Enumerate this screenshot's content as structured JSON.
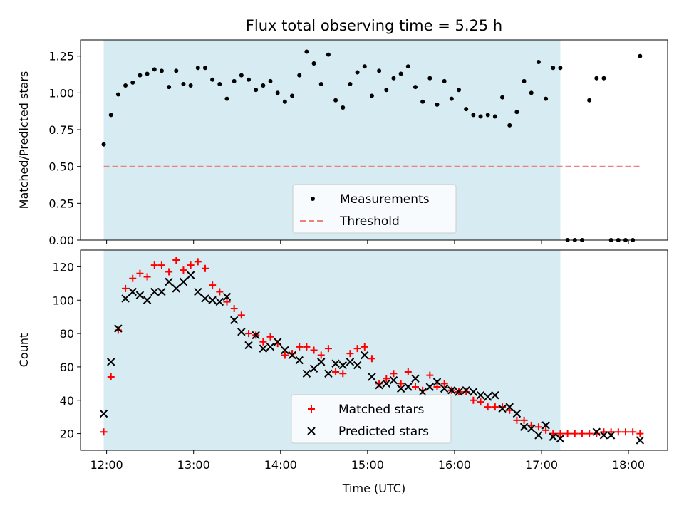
{
  "chart_data": [
    {
      "type": "scatter",
      "title": "Flux total observing time = 5.25 h",
      "xlabel": "",
      "ylabel": "Matched/Predicted stars",
      "xlim": [
        "11:42",
        "18:27"
      ],
      "ylim": [
        0,
        1.36
      ],
      "yticks": [
        "0.00",
        "0.25",
        "0.50",
        "0.75",
        "1.00",
        "1.25"
      ],
      "xticks": [
        "12:00",
        "13:00",
        "14:00",
        "15:00",
        "16:00",
        "17:00",
        "18:00"
      ],
      "observing_window": [
        "11:58",
        "17:13"
      ],
      "legend": {
        "placement": "lower-center",
        "entries": [
          "Measurements",
          "Threshold"
        ]
      },
      "series": [
        {
          "name": "Measurements",
          "color": "#000000",
          "marker": "dot",
          "x": [
            "11:58",
            "12:03",
            "12:08",
            "12:13",
            "12:18",
            "12:23",
            "12:28",
            "12:33",
            "12:38",
            "12:43",
            "12:48",
            "12:53",
            "12:58",
            "13:03",
            "13:08",
            "13:13",
            "13:18",
            "13:23",
            "13:28",
            "13:33",
            "13:38",
            "13:43",
            "13:48",
            "13:53",
            "13:58",
            "14:03",
            "14:08",
            "14:13",
            "14:18",
            "14:23",
            "14:28",
            "14:33",
            "14:38",
            "14:43",
            "14:48",
            "14:53",
            "14:58",
            "15:03",
            "15:08",
            "15:13",
            "15:18",
            "15:23",
            "15:28",
            "15:33",
            "15:38",
            "15:43",
            "15:48",
            "15:53",
            "15:58",
            "16:03",
            "16:08",
            "16:13",
            "16:18",
            "16:23",
            "16:28",
            "16:33",
            "16:38",
            "16:43",
            "16:48",
            "16:53",
            "16:58",
            "17:03",
            "17:08",
            "17:13",
            "17:18",
            "17:23",
            "17:28",
            "17:33",
            "17:38",
            "17:43",
            "17:48",
            "17:53",
            "17:58",
            "18:03",
            "18:08"
          ],
          "y": [
            0.65,
            0.85,
            0.99,
            1.05,
            1.07,
            1.12,
            1.13,
            1.16,
            1.15,
            1.04,
            1.15,
            1.06,
            1.05,
            1.17,
            1.17,
            1.09,
            1.06,
            0.96,
            1.08,
            1.12,
            1.09,
            1.02,
            1.05,
            1.08,
            1.0,
            0.94,
            0.98,
            1.12,
            1.28,
            1.2,
            1.06,
            1.26,
            0.95,
            0.9,
            1.06,
            1.14,
            1.18,
            0.98,
            1.15,
            1.02,
            1.1,
            1.13,
            1.18,
            1.04,
            0.94,
            1.1,
            0.92,
            1.08,
            0.96,
            1.02,
            0.89,
            0.85,
            0.84,
            0.85,
            0.84,
            0.97,
            0.78,
            0.87,
            1.08,
            1.0,
            1.21,
            0.96,
            1.17,
            1.17,
            0.0,
            0.0,
            0.0,
            0.95,
            1.1,
            1.1,
            0.0,
            0.0,
            0.0,
            0.0,
            1.25
          ]
        },
        {
          "name": "Threshold",
          "color": "#f08080",
          "style": "dashed",
          "x": [
            "11:58",
            "18:08"
          ],
          "y": [
            0.5,
            0.5
          ]
        }
      ]
    },
    {
      "type": "scatter",
      "title": "",
      "xlabel": "Time (UTC)",
      "ylabel": "Count",
      "xlim": [
        "11:42",
        "18:27"
      ],
      "ylim": [
        10,
        130
      ],
      "yticks": [
        "20",
        "40",
        "60",
        "80",
        "100",
        "120"
      ],
      "xticks": [
        "12:00",
        "13:00",
        "14:00",
        "15:00",
        "16:00",
        "17:00",
        "18:00"
      ],
      "observing_window": [
        "11:58",
        "17:13"
      ],
      "legend": {
        "placement": "lower-center",
        "entries": [
          "Matched stars",
          "Predicted stars"
        ]
      },
      "series": [
        {
          "name": "Matched stars",
          "color": "#ff0000",
          "marker": "plus",
          "x": [
            "11:58",
            "12:03",
            "12:08",
            "12:13",
            "12:18",
            "12:23",
            "12:28",
            "12:33",
            "12:38",
            "12:43",
            "12:48",
            "12:53",
            "12:58",
            "13:03",
            "13:08",
            "13:13",
            "13:18",
            "13:23",
            "13:28",
            "13:33",
            "13:38",
            "13:43",
            "13:48",
            "13:53",
            "13:58",
            "14:03",
            "14:08",
            "14:13",
            "14:18",
            "14:23",
            "14:28",
            "14:33",
            "14:38",
            "14:43",
            "14:48",
            "14:53",
            "14:58",
            "15:03",
            "15:08",
            "15:13",
            "15:18",
            "15:23",
            "15:28",
            "15:33",
            "15:38",
            "15:43",
            "15:48",
            "15:53",
            "15:58",
            "16:03",
            "16:08",
            "16:13",
            "16:18",
            "16:23",
            "16:28",
            "16:33",
            "16:38",
            "16:43",
            "16:48",
            "16:53",
            "16:58",
            "17:03",
            "17:08",
            "17:13",
            "17:18",
            "17:23",
            "17:28",
            "17:33",
            "17:38",
            "17:43",
            "17:48",
            "17:53",
            "17:58",
            "18:03",
            "18:08"
          ],
          "y": [
            21,
            54,
            82,
            107,
            113,
            116,
            114,
            121,
            121,
            117,
            124,
            118,
            121,
            123,
            119,
            109,
            105,
            99,
            95,
            91,
            80,
            79,
            75,
            78,
            74,
            67,
            68,
            72,
            72,
            70,
            67,
            71,
            57,
            56,
            68,
            71,
            72,
            65,
            50,
            53,
            56,
            50,
            57,
            48,
            46,
            55,
            48,
            50,
            46,
            45,
            45,
            40,
            39,
            36,
            36,
            36,
            34,
            28,
            28,
            25,
            24,
            22,
            20,
            20,
            20,
            20,
            20,
            20,
            20,
            21,
            21,
            21,
            21,
            21,
            20
          ]
        },
        {
          "name": "Predicted stars",
          "color": "#000000",
          "marker": "cross",
          "x": [
            "11:58",
            "12:03",
            "12:08",
            "12:13",
            "12:18",
            "12:23",
            "12:28",
            "12:33",
            "12:38",
            "12:43",
            "12:48",
            "12:53",
            "12:58",
            "13:03",
            "13:08",
            "13:13",
            "13:18",
            "13:23",
            "13:28",
            "13:33",
            "13:38",
            "13:43",
            "13:48",
            "13:53",
            "13:58",
            "14:03",
            "14:08",
            "14:13",
            "14:18",
            "14:23",
            "14:28",
            "14:33",
            "14:38",
            "14:43",
            "14:48",
            "14:53",
            "14:58",
            "15:03",
            "15:08",
            "15:13",
            "15:18",
            "15:23",
            "15:28",
            "15:33",
            "15:38",
            "15:43",
            "15:48",
            "15:53",
            "15:58",
            "16:03",
            "16:08",
            "16:13",
            "16:18",
            "16:23",
            "16:28",
            "16:33",
            "16:38",
            "16:43",
            "16:48",
            "16:53",
            "16:58",
            "17:03",
            "17:08",
            "17:13",
            "17:38",
            "17:43",
            "17:48",
            "18:08"
          ],
          "y": [
            32,
            63,
            83,
            101,
            105,
            103,
            100,
            105,
            105,
            111,
            107,
            111,
            115,
            105,
            101,
            100,
            99,
            102,
            88,
            81,
            73,
            79,
            71,
            72,
            75,
            70,
            67,
            64,
            56,
            59,
            63,
            56,
            62,
            61,
            63,
            61,
            67,
            54,
            49,
            50,
            52,
            47,
            48,
            53,
            45,
            48,
            51,
            47,
            46,
            45,
            46,
            45,
            43,
            42,
            43,
            35,
            36,
            32,
            24,
            23,
            19,
            25,
            18,
            17,
            21,
            19,
            19,
            16
          ]
        }
      ]
    }
  ]
}
